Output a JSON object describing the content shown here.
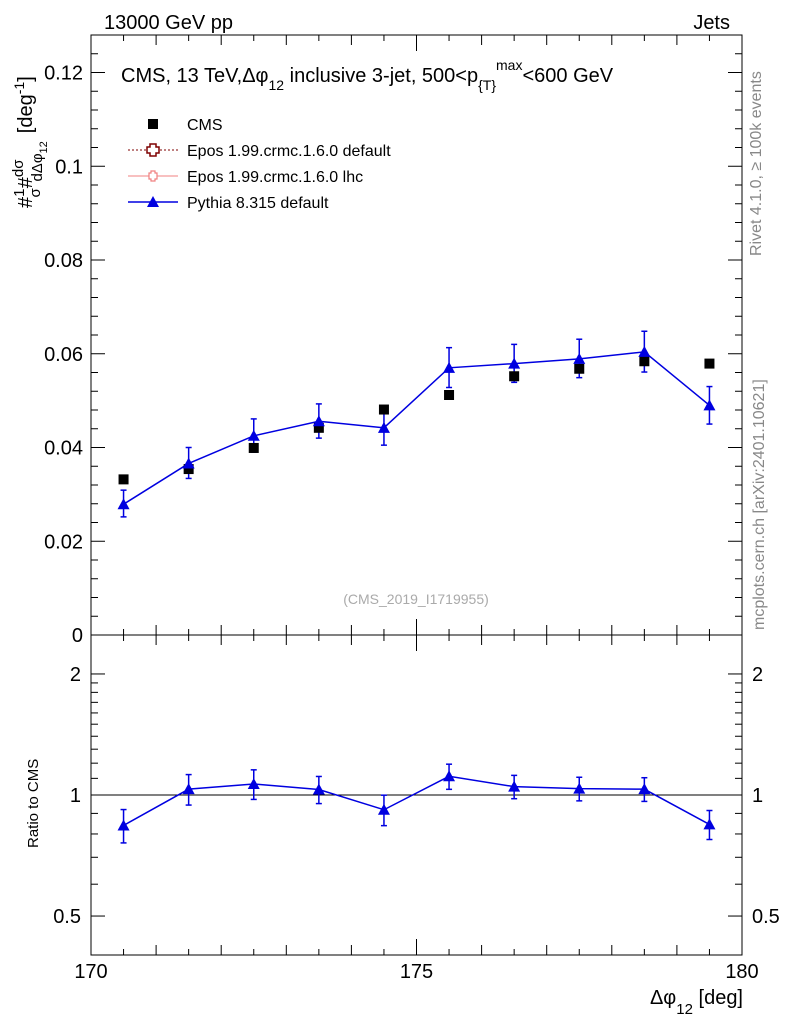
{
  "header": {
    "beam_label": "13000 GeV pp",
    "category": "Jets",
    "analysis_id": "(CMS_2019_I1719955)",
    "side_rivet": "Rivet 4.1.0, ≥ 100k events",
    "side_mcplots": "mcplots.cern.ch [arXiv:2401.10621]"
  },
  "colors": {
    "cms": "#000000",
    "epos_default": "#7f0000",
    "epos_lhc": "#f08080",
    "pythia": "#0000e0"
  },
  "chart_data": [
    {
      "type": "scatter",
      "panel": "main",
      "title": "CMS, 13 TeV,Δφ₁₂ inclusive 3-jet, 500<p{T}max<600 GeV",
      "title_parts": {
        "p1": "CMS, 13 TeV,",
        "dphi": "Δφ",
        "sub12": "12",
        "p2": " inclusive 3-jet, 500<p",
        "subT": "{T}",
        "supmax": "max",
        "p3": "<600 GeV"
      },
      "ylabel": "#1/σ # dσ/dΔφ₁₂ [deg⁻¹]",
      "ylabel_parts": {
        "hash": "#",
        "one": "1",
        "sigma": "σ",
        "dsigma": "dσ",
        "ddphi": "dΔφ",
        "sub12": "12",
        "unit": "[deg",
        "unit_sup": "-1",
        "unit_close": "]"
      },
      "xlim": [
        170,
        180
      ],
      "ylim": [
        0,
        0.128
      ],
      "yticks": [
        0,
        0.02,
        0.04,
        0.06,
        0.08,
        0.1,
        0.12
      ],
      "ytick_labels": [
        "0",
        "0.02",
        "0.04",
        "0.06",
        "0.08",
        "0.1",
        "0.12"
      ],
      "legend_position": "top-left",
      "legend": [
        "CMS",
        "Epos 1.99.crmc.1.6.0 default",
        "Epos 1.99.crmc.1.6.0 lhc",
        "Pythia 8.315 default"
      ],
      "x": [
        170.5,
        171.5,
        172.5,
        173.5,
        174.5,
        175.5,
        176.5,
        177.5,
        178.5,
        179.5
      ],
      "series": [
        {
          "name": "CMS",
          "values": [
            0.0332,
            0.0354,
            0.0399,
            0.0442,
            0.0481,
            0.0512,
            0.0552,
            0.0568,
            0.0584,
            0.0579
          ]
        },
        {
          "name": "Pythia 8.315 default",
          "values": [
            0.0279,
            0.0366,
            0.0425,
            0.0456,
            0.0442,
            0.057,
            0.0579,
            0.0589,
            0.0604,
            0.049
          ],
          "err_low": [
            0.0027,
            0.0032,
            0.0035,
            0.0036,
            0.0037,
            0.0042,
            0.004,
            0.004,
            0.0043,
            0.004
          ],
          "err_high": [
            0.003,
            0.0034,
            0.0036,
            0.0037,
            0.0038,
            0.0043,
            0.0041,
            0.0042,
            0.0044,
            0.004
          ]
        }
      ]
    },
    {
      "type": "line",
      "panel": "ratio",
      "ylabel": "Ratio to CMS",
      "xlabel": "Δφ₁₂ [deg]",
      "xlabel_parts": {
        "dphi": "Δφ",
        "sub12": "12",
        "unit": " [deg]"
      },
      "yscale": "log",
      "ylim": [
        0.4,
        2.5
      ],
      "yticks": [
        0.5,
        1,
        2
      ],
      "ytick_labels": [
        "0.5",
        "1",
        "2"
      ],
      "xticks": [
        170,
        175,
        180
      ],
      "xtick_labels": [
        "170",
        "175",
        "180"
      ],
      "reference": 1.0,
      "x": [
        170.5,
        171.5,
        172.5,
        173.5,
        174.5,
        175.5,
        176.5,
        177.5,
        178.5,
        179.5
      ],
      "series": [
        {
          "name": "Pythia 8.315 default",
          "values": [
            0.84,
            1.034,
            1.065,
            1.032,
            0.919,
            1.113,
            1.049,
            1.037,
            1.034,
            0.845
          ],
          "err_low": [
            0.08,
            0.09,
            0.09,
            0.08,
            0.08,
            0.08,
            0.07,
            0.07,
            0.07,
            0.07
          ],
          "err_high": [
            0.08,
            0.09,
            0.09,
            0.08,
            0.08,
            0.08,
            0.07,
            0.07,
            0.07,
            0.07
          ]
        }
      ]
    }
  ]
}
